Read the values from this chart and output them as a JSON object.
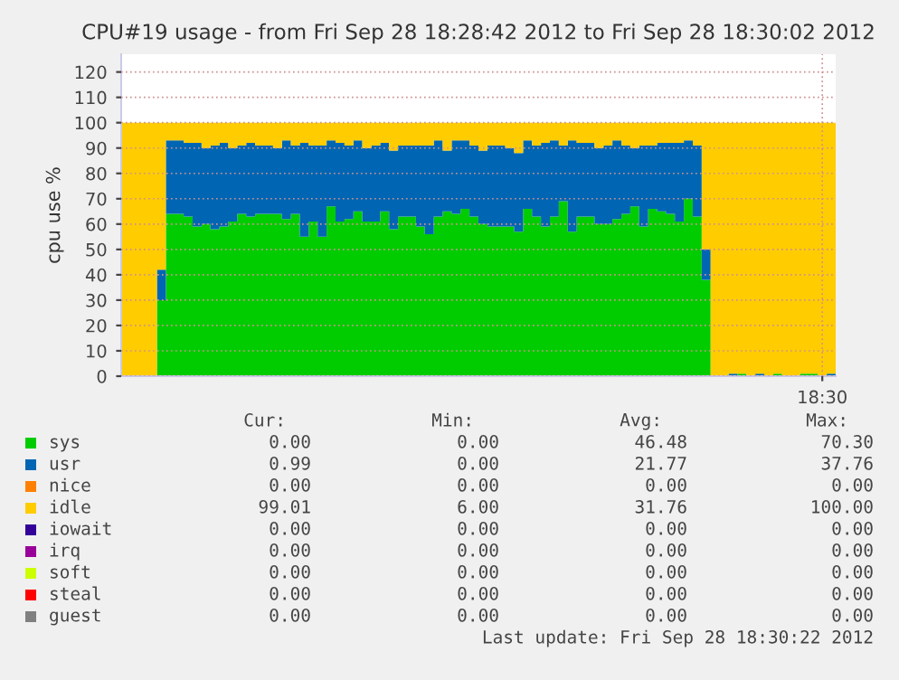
{
  "chart_data": {
    "type": "area",
    "stacked": true,
    "title": "CPU#19 usage - from Fri Sep 28 18:28:42 2012 to Fri Sep 28 18:30:02 2012",
    "ylabel": "cpu use %",
    "categories": [
      null,
      null,
      null,
      null,
      null,
      null,
      null,
      null,
      null,
      null,
      null,
      null,
      null,
      null,
      null,
      null,
      null,
      null,
      null,
      null,
      null,
      null,
      null,
      null,
      null,
      null,
      null,
      null,
      null,
      null,
      null,
      null,
      null,
      null,
      null,
      null,
      null,
      null,
      null,
      null,
      null,
      null,
      null,
      null,
      null,
      null,
      null,
      null,
      null,
      null,
      null,
      null,
      null,
      null,
      null,
      null,
      null,
      null,
      null,
      null,
      null,
      null,
      null,
      null,
      null,
      null,
      null,
      null,
      null,
      null,
      null,
      null,
      null,
      null,
      null,
      null,
      null,
      null,
      "18:30",
      null
    ],
    "series": [
      {
        "name": "sys",
        "color": "#00cc00",
        "values": [
          0,
          0,
          0,
          0,
          30,
          64,
          64,
          63,
          59,
          60,
          58,
          59,
          61,
          64,
          63,
          64,
          64,
          64,
          62,
          64,
          55,
          61,
          55,
          67,
          61,
          62,
          65,
          61,
          61,
          65,
          58,
          63,
          63,
          59,
          56,
          63,
          65,
          64,
          66,
          63,
          60,
          59,
          59,
          59,
          57,
          66,
          63,
          59,
          63,
          69,
          57,
          63,
          63,
          60,
          60,
          62,
          64,
          67,
          59,
          66,
          65,
          64,
          61,
          70,
          63,
          38,
          0,
          0,
          0,
          1,
          0,
          0,
          0,
          1,
          0,
          0,
          1,
          1,
          0,
          0
        ]
      },
      {
        "name": "usr",
        "color": "#0066b3",
        "values": [
          0,
          0,
          0,
          0,
          12,
          29,
          29,
          29,
          33,
          30,
          33,
          33,
          29,
          27,
          29,
          27,
          27,
          26,
          31,
          27,
          37,
          30,
          36,
          26,
          31,
          29,
          28,
          29,
          30,
          27,
          31,
          28,
          28,
          32,
          35,
          30,
          24,
          29,
          27,
          28,
          29,
          32,
          32,
          31,
          31,
          27,
          28,
          33,
          30,
          22,
          36,
          29,
          29,
          30,
          31,
          31,
          27,
          23,
          32,
          25,
          27,
          28,
          31,
          23,
          28,
          12,
          0,
          0,
          1,
          0,
          0,
          1,
          0,
          0,
          0,
          0,
          0,
          0,
          0,
          1
        ]
      },
      {
        "name": "nice",
        "color": "#ff8000",
        "values": [
          null,
          null,
          null,
          null,
          null,
          null,
          null,
          null,
          null,
          null,
          null,
          null,
          null,
          null,
          null,
          null,
          null,
          null,
          null,
          null,
          null,
          null,
          null,
          null,
          null,
          null,
          null,
          null,
          null,
          null,
          null,
          null,
          null,
          null,
          null,
          null,
          null,
          null,
          null,
          null,
          null,
          null,
          null,
          null,
          null,
          null,
          null,
          null,
          null,
          null,
          null,
          null,
          null,
          null,
          null,
          null,
          null,
          null,
          null,
          null,
          null,
          null,
          null,
          null,
          null,
          null,
          null,
          null,
          null,
          null,
          null,
          null,
          null,
          null,
          null,
          null,
          null,
          null,
          null,
          null
        ]
      },
      {
        "name": "idle",
        "color": "#ffcc00",
        "values": [
          100,
          100,
          100,
          100,
          58,
          7,
          7,
          8,
          8,
          10,
          9,
          8,
          10,
          9,
          8,
          9,
          9,
          10,
          7,
          9,
          8,
          9,
          9,
          7,
          8,
          9,
          7,
          10,
          9,
          8,
          11,
          9,
          9,
          9,
          9,
          7,
          11,
          7,
          7,
          9,
          11,
          9,
          9,
          10,
          12,
          7,
          9,
          8,
          7,
          9,
          7,
          8,
          8,
          10,
          9,
          7,
          9,
          10,
          9,
          9,
          8,
          8,
          8,
          7,
          9,
          50,
          100,
          100,
          99,
          99,
          100,
          99,
          100,
          99,
          100,
          100,
          99,
          99,
          100,
          99
        ]
      },
      {
        "name": "iowait",
        "color": "#330099",
        "values": [
          null,
          null,
          null,
          null,
          null,
          null,
          null,
          null,
          null,
          null,
          null,
          null,
          null,
          null,
          null,
          null,
          null,
          null,
          null,
          null,
          null,
          null,
          null,
          null,
          null,
          null,
          null,
          null,
          null,
          null,
          null,
          null,
          null,
          null,
          null,
          null,
          null,
          null,
          null,
          null,
          null,
          null,
          null,
          null,
          null,
          null,
          null,
          null,
          null,
          null,
          null,
          null,
          null,
          null,
          null,
          null,
          null,
          null,
          null,
          null,
          null,
          null,
          null,
          null,
          null,
          null,
          null,
          null,
          null,
          null,
          null,
          null,
          null,
          null,
          null,
          null,
          null,
          null,
          null,
          null
        ]
      },
      {
        "name": "irq",
        "color": "#990099",
        "values": [
          null,
          null,
          null,
          null,
          null,
          null,
          null,
          null,
          null,
          null,
          null,
          null,
          null,
          null,
          null,
          null,
          null,
          null,
          null,
          null,
          null,
          null,
          null,
          null,
          null,
          null,
          null,
          null,
          null,
          null,
          null,
          null,
          null,
          null,
          null,
          null,
          null,
          null,
          null,
          null,
          null,
          null,
          null,
          null,
          null,
          null,
          null,
          null,
          null,
          null,
          null,
          null,
          null,
          null,
          null,
          null,
          null,
          null,
          null,
          null,
          null,
          null,
          null,
          null,
          null,
          null,
          null,
          null,
          null,
          null,
          null,
          null,
          null,
          null,
          null,
          null,
          null,
          null,
          null,
          null
        ]
      },
      {
        "name": "soft",
        "color": "#ccff00",
        "values": [
          null,
          null,
          null,
          null,
          null,
          null,
          null,
          null,
          null,
          null,
          null,
          null,
          null,
          null,
          null,
          null,
          null,
          null,
          null,
          null,
          null,
          null,
          null,
          null,
          null,
          null,
          null,
          null,
          null,
          null,
          null,
          null,
          null,
          null,
          null,
          null,
          null,
          null,
          null,
          null,
          null,
          null,
          null,
          null,
          null,
          null,
          null,
          null,
          null,
          null,
          null,
          null,
          null,
          null,
          null,
          null,
          null,
          null,
          null,
          null,
          null,
          null,
          null,
          null,
          null,
          null,
          null,
          null,
          null,
          null,
          null,
          null,
          null,
          null,
          null,
          null,
          null,
          null,
          null,
          null
        ]
      },
      {
        "name": "steal",
        "color": "#ff0000",
        "values": [
          null,
          null,
          null,
          null,
          null,
          null,
          null,
          null,
          null,
          null,
          null,
          null,
          null,
          null,
          null,
          null,
          null,
          null,
          null,
          null,
          null,
          null,
          null,
          null,
          null,
          null,
          null,
          null,
          null,
          null,
          null,
          null,
          null,
          null,
          null,
          null,
          null,
          null,
          null,
          null,
          null,
          null,
          null,
          null,
          null,
          null,
          null,
          null,
          null,
          null,
          null,
          null,
          null,
          null,
          null,
          null,
          null,
          null,
          null,
          null,
          null,
          null,
          null,
          null,
          null,
          null,
          null,
          null,
          null,
          null,
          null,
          null,
          null,
          null,
          null,
          null,
          null,
          null,
          null,
          null
        ]
      },
      {
        "name": "guest",
        "color": "#808080",
        "values": [
          null,
          null,
          null,
          null,
          null,
          null,
          null,
          null,
          null,
          null,
          null,
          null,
          null,
          null,
          null,
          null,
          null,
          null,
          null,
          null,
          null,
          null,
          null,
          null,
          null,
          null,
          null,
          null,
          null,
          null,
          null,
          null,
          null,
          null,
          null,
          null,
          null,
          null,
          null,
          null,
          null,
          null,
          null,
          null,
          null,
          null,
          null,
          null,
          null,
          null,
          null,
          null,
          null,
          null,
          null,
          null,
          null,
          null,
          null,
          null,
          null,
          null,
          null,
          null,
          null,
          null,
          null,
          null,
          null,
          null,
          null,
          null,
          null,
          null,
          null,
          null,
          null,
          null,
          null,
          null
        ]
      }
    ],
    "ylim": [
      0,
      127
    ],
    "yticks": [
      0,
      10,
      20,
      30,
      40,
      50,
      60,
      70,
      80,
      90,
      100,
      110,
      120
    ],
    "grid": true,
    "legend": "bottom",
    "annotations": [
      "Cur:",
      "Min:",
      "Avg:",
      "Max:",
      "0.00",
      "0.00",
      "46.48",
      "70.30",
      "0.99",
      "0.00",
      "21.77",
      "37.76",
      "0.00",
      "0.00",
      "0.00",
      "0.00",
      "99.01",
      "6.00",
      "31.76",
      "100.00",
      "0.00",
      "0.00",
      "0.00",
      "0.00",
      "0.00",
      "0.00",
      "0.00",
      "0.00",
      "0.00",
      "0.00",
      "0.00",
      "0.00",
      "0.00",
      "0.00",
      "0.00",
      "0.00",
      "0.00",
      "0.00",
      "0.00",
      "0.00",
      "Last update: Fri Sep 28 18:30:22 2012"
    ]
  }
}
